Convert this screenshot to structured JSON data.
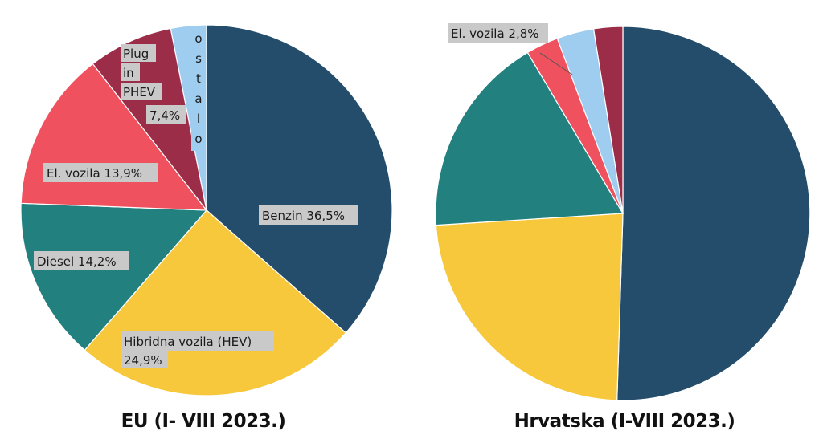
{
  "chart_data": [
    {
      "type": "pie",
      "title": "EU (I- VIII 2023.)",
      "slices": [
        {
          "label": "Benzin 36,5%",
          "value": 36.5,
          "color": "#244d6b"
        },
        {
          "label": "Hibridna vozila (HEV) 24,9%",
          "value": 24.9,
          "color": "#f7c83c"
        },
        {
          "label": "Diesel 14,2%",
          "value": 14.2,
          "color": "#22807f"
        },
        {
          "label": "El. vozila 13,9%",
          "value": 13.9,
          "color": "#f0515e"
        },
        {
          "label": "Plug in PHEV 7,4%",
          "value": 7.4,
          "color": "#9c2d48"
        },
        {
          "label": "ostalo",
          "value": 3.1,
          "color": "#9ecdf0"
        }
      ],
      "label_lines": {
        "benzin": [
          "Benzin 36,5%"
        ],
        "hev": [
          "Hibridna vozila (HEV)",
          "24,9%"
        ],
        "diesel": [
          "Diesel 14,2%"
        ],
        "el": [
          "El. vozila 13,9%"
        ],
        "phev": [
          "Plug",
          "in",
          "PHEV",
          "7,4%"
        ],
        "ostalo": "ostalo"
      }
    },
    {
      "type": "pie",
      "title": "Hrvatska (I-VIII 2023.)",
      "slices": [
        {
          "label": "",
          "value": 50.5,
          "color": "#244d6b"
        },
        {
          "label": "",
          "value": 23.5,
          "color": "#f7c83c"
        },
        {
          "label": "",
          "value": 17.5,
          "color": "#22807f"
        },
        {
          "label": "El. vozila 2,8%",
          "value": 2.8,
          "color": "#f0515e"
        },
        {
          "label": "",
          "value": 3.2,
          "color": "#9ecdf0"
        },
        {
          "label": "",
          "value": 2.5,
          "color": "#9c2d48"
        }
      ],
      "label_lines": {
        "el": [
          "El. vozila 2,8%"
        ]
      }
    }
  ]
}
